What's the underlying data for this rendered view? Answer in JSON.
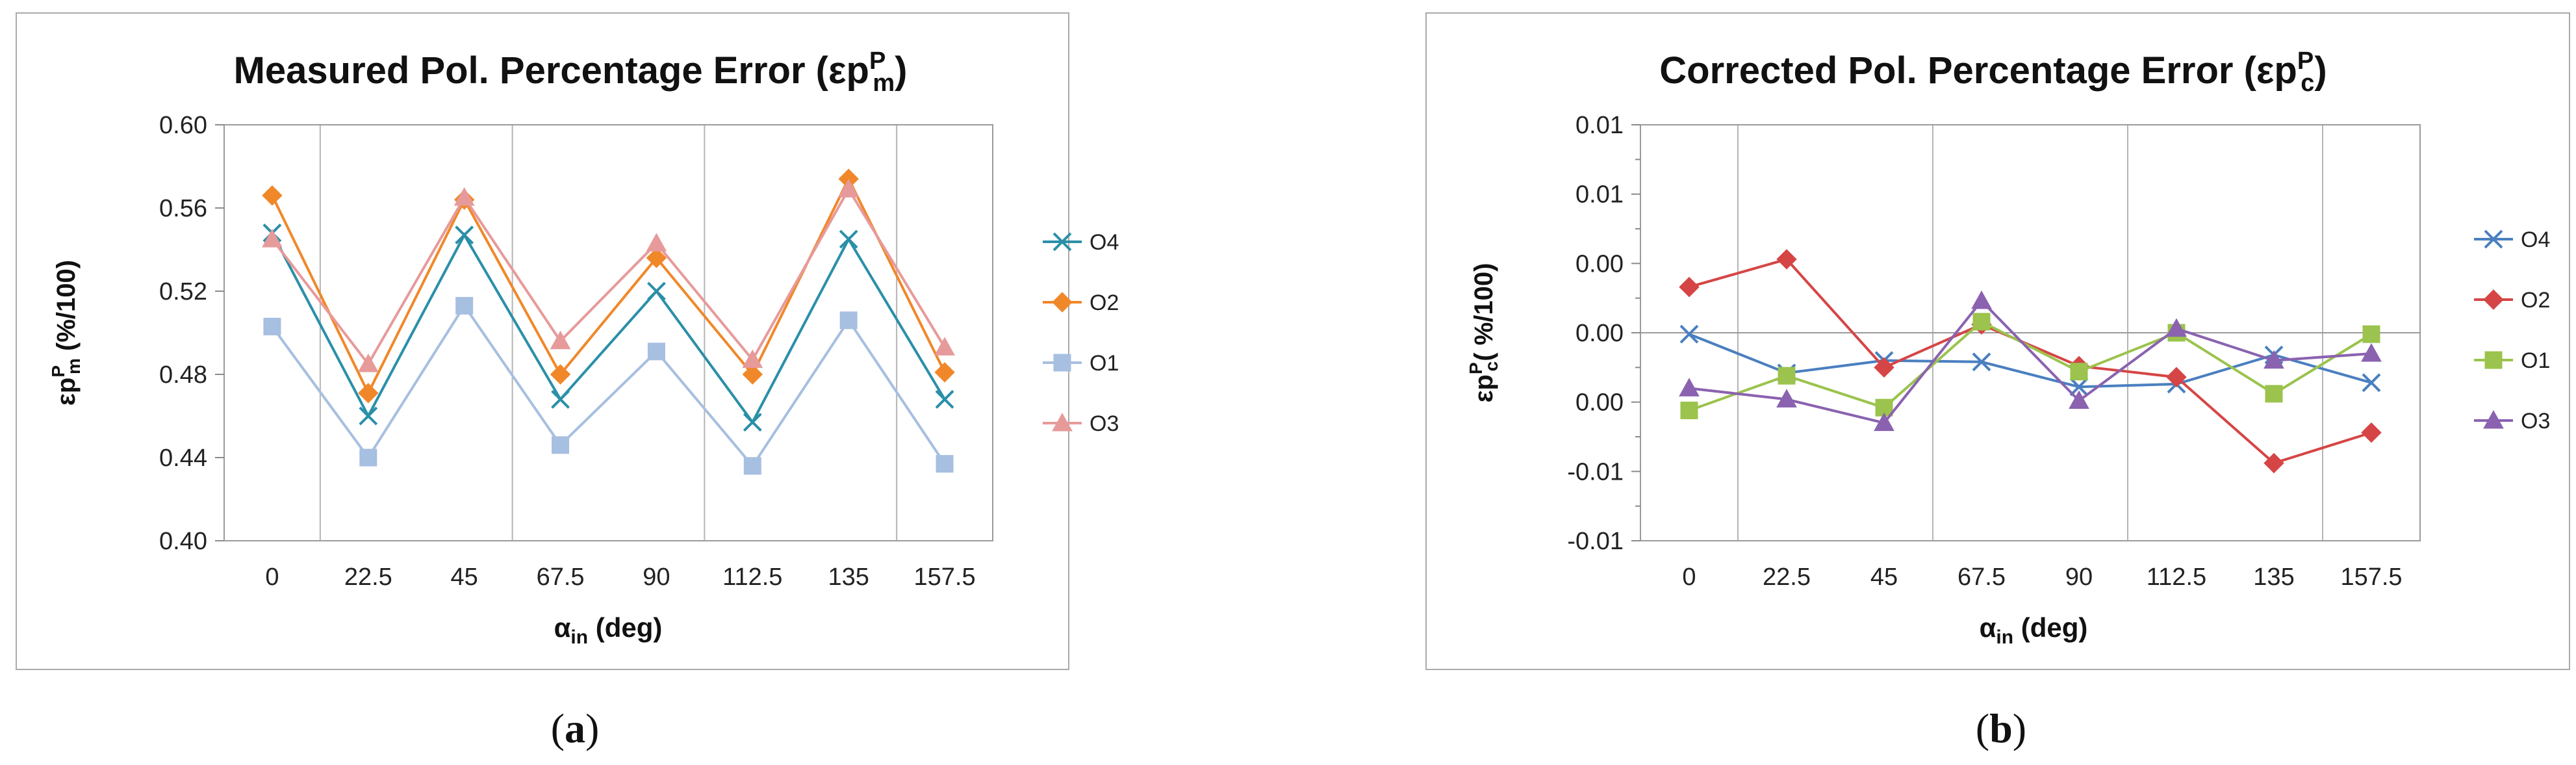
{
  "colors": {
    "O4": "#4a8fc8",
    "O2": "#e8862d",
    "O1": "#9dbbe0",
    "O3": "#e39a9a",
    "gridline": "#b5b5b5",
    "frame": "#aaaaaa"
  },
  "chart_data": [
    {
      "type": "line",
      "panel": "a",
      "caption": "(a)",
      "title": "Measured Pol. Percentage Error (εp",
      "title_sup": "P",
      "title_sub": "m",
      "title_close": ")",
      "ylabel": "εp",
      "ylabel_sup": "P",
      "ylabel_sub": "m",
      "ylabel_rest": " (%/100)",
      "xlabel": "α",
      "xlabel_sub": "in",
      "xlabel_rest": " (deg)",
      "categories": [
        "0",
        "22.5",
        "45",
        "67.5",
        "90",
        "112.5",
        "135",
        "157.5"
      ],
      "ylim": [
        0.4,
        0.6
      ],
      "yticks": [
        0.4,
        0.44,
        0.48,
        0.52,
        0.56,
        0.6
      ],
      "ytick_labels": [
        "0.40",
        "0.44",
        "0.48",
        "0.52",
        "0.56",
        "0.60"
      ],
      "grid": "vertical",
      "legend_position": "right",
      "series": [
        {
          "name": "O4",
          "marker": "x",
          "color": "#2a8fa8",
          "values": [
            0.548,
            0.46,
            0.547,
            0.468,
            0.52,
            0.457,
            0.545,
            0.468
          ]
        },
        {
          "name": "O2",
          "marker": "diamond",
          "color": "#f0882a",
          "values": [
            0.566,
            0.471,
            0.564,
            0.48,
            0.536,
            0.48,
            0.574,
            0.481
          ]
        },
        {
          "name": "O1",
          "marker": "square",
          "color": "#a7bfe0",
          "values": [
            0.503,
            0.44,
            0.513,
            0.446,
            0.491,
            0.436,
            0.506,
            0.437
          ]
        },
        {
          "name": "O3",
          "marker": "triangle",
          "color": "#e79a9a",
          "values": [
            0.545,
            0.485,
            0.565,
            0.496,
            0.543,
            0.487,
            0.569,
            0.493
          ]
        }
      ]
    },
    {
      "type": "line",
      "panel": "b",
      "caption": "(b)",
      "title": "Corrected Pol. Percentage Error (εp",
      "title_sup": "P",
      "title_sub": "c",
      "title_close": ")",
      "ylabel": "εp",
      "ylabel_sup": "P",
      "ylabel_sub": "c",
      "ylabel_rest": "( %/100)",
      "xlabel": "α",
      "xlabel_sub": "in",
      "xlabel_rest": " (deg)",
      "categories": [
        "0",
        "22.5",
        "45",
        "67.5",
        "90",
        "112.5",
        "135",
        "157.5"
      ],
      "ylim": [
        -0.015,
        0.015
      ],
      "yticks": [
        -0.015,
        -0.01,
        -0.005,
        0.0,
        0.005,
        0.01,
        0.015
      ],
      "ytick_labels": [
        "-0.01",
        "-0.01",
        "0.00",
        "0.00",
        "0.00",
        "0.01",
        "0.01"
      ],
      "grid": "vertical+zero",
      "legend_position": "right",
      "series": [
        {
          "name": "O4",
          "marker": "x",
          "color": "#4a7fc0",
          "values": [
            -0.0001,
            -0.0029,
            -0.002,
            -0.0021,
            -0.0039,
            -0.0037,
            -0.0016,
            -0.0036
          ]
        },
        {
          "name": "O2",
          "marker": "diamond",
          "color": "#d64545",
          "values": [
            0.0033,
            0.0053,
            -0.0025,
            0.0006,
            -0.0024,
            -0.0032,
            -0.0094,
            -0.0072
          ]
        },
        {
          "name": "O1",
          "marker": "square",
          "color": "#9bc34d",
          "values": [
            -0.0056,
            -0.0031,
            -0.0054,
            0.0008,
            -0.0028,
            0.0,
            -0.0044,
            -0.0001
          ]
        },
        {
          "name": "O3",
          "marker": "triangle",
          "color": "#8a62b0",
          "values": [
            -0.004,
            -0.0048,
            -0.0065,
            0.0023,
            -0.0049,
            0.0003,
            -0.002,
            -0.0015
          ]
        }
      ]
    }
  ]
}
